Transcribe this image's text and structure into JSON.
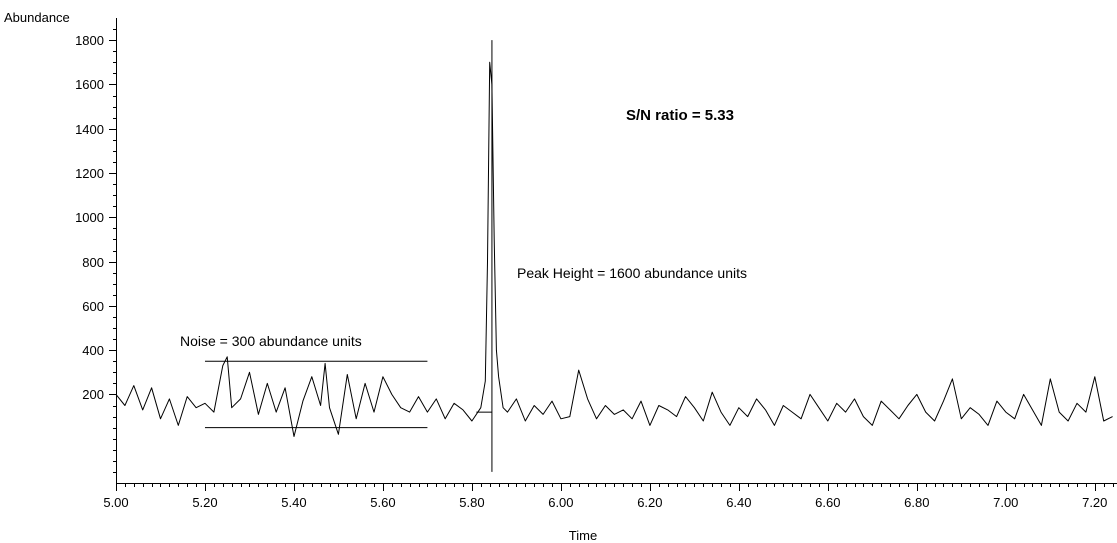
{
  "chart_data": {
    "type": "line",
    "xlabel": "Time",
    "ylabel": "Abundance",
    "xlim": [
      5.0,
      7.25
    ],
    "ylim": [
      -200,
      1900
    ],
    "x_ticks": [
      5.0,
      5.2,
      5.4,
      5.6,
      5.8,
      6.0,
      6.2,
      6.4,
      6.6,
      6.8,
      7.0,
      7.2
    ],
    "x_tick_labels": [
      "5.00",
      "5.20",
      "5.40",
      "5.60",
      "5.80",
      "6.00",
      "6.20",
      "6.40",
      "6.60",
      "6.80",
      "7.00",
      "7.20"
    ],
    "y_ticks": [
      200,
      400,
      600,
      800,
      1000,
      1200,
      1400,
      1600,
      1800
    ],
    "y_tick_labels": [
      "200",
      "400",
      "600",
      "800",
      "1000",
      "1200",
      "1400",
      "1600",
      "1800"
    ],
    "grid": false,
    "noise_band": {
      "x_start": 5.2,
      "x_end": 5.7,
      "upper": 350,
      "lower": 50
    },
    "peak_marker": {
      "x": 5.845,
      "top": 1800,
      "bottom": -150,
      "baseline": 120,
      "baseline_x_start": 5.81
    },
    "series": [
      {
        "x": [
          5.0,
          5.02,
          5.04,
          5.06,
          5.08,
          5.1,
          5.12,
          5.14,
          5.16,
          5.18,
          5.2,
          5.22,
          5.24,
          5.25,
          5.26,
          5.28,
          5.3,
          5.32,
          5.34,
          5.36,
          5.38,
          5.4,
          5.42,
          5.44,
          5.46,
          5.47,
          5.48,
          5.5,
          5.52,
          5.54,
          5.56,
          5.58,
          5.6,
          5.62,
          5.64,
          5.66,
          5.68,
          5.7,
          5.72,
          5.74,
          5.76,
          5.78,
          5.8,
          5.82,
          5.83,
          5.835,
          5.84,
          5.845,
          5.85,
          5.855,
          5.86,
          5.87,
          5.88,
          5.9,
          5.92,
          5.94,
          5.96,
          5.98,
          6.0,
          6.02,
          6.04,
          6.06,
          6.08,
          6.1,
          6.12,
          6.14,
          6.16,
          6.18,
          6.2,
          6.22,
          6.24,
          6.26,
          6.28,
          6.3,
          6.32,
          6.34,
          6.36,
          6.38,
          6.4,
          6.42,
          6.44,
          6.46,
          6.48,
          6.5,
          6.52,
          6.54,
          6.56,
          6.58,
          6.6,
          6.62,
          6.64,
          6.66,
          6.68,
          6.7,
          6.72,
          6.74,
          6.76,
          6.78,
          6.8,
          6.82,
          6.84,
          6.86,
          6.88,
          6.9,
          6.92,
          6.94,
          6.96,
          6.98,
          7.0,
          7.02,
          7.04,
          7.06,
          7.08,
          7.1,
          7.12,
          7.14,
          7.16,
          7.18,
          7.2,
          7.22,
          7.24
        ],
        "y": [
          200,
          150,
          240,
          130,
          230,
          90,
          180,
          60,
          190,
          140,
          160,
          120,
          330,
          370,
          140,
          180,
          300,
          110,
          250,
          120,
          230,
          10,
          170,
          280,
          150,
          340,
          140,
          20,
          290,
          90,
          250,
          120,
          280,
          200,
          140,
          120,
          190,
          120,
          180,
          90,
          160,
          130,
          80,
          140,
          260,
          800,
          1700,
          1600,
          900,
          400,
          280,
          140,
          120,
          180,
          80,
          150,
          110,
          170,
          90,
          100,
          310,
          180,
          90,
          150,
          110,
          130,
          90,
          170,
          60,
          150,
          130,
          100,
          190,
          140,
          80,
          210,
          120,
          60,
          140,
          100,
          180,
          130,
          60,
          150,
          120,
          90,
          200,
          140,
          80,
          160,
          120,
          180,
          100,
          60,
          170,
          130,
          90,
          150,
          200,
          120,
          80,
          170,
          270,
          90,
          140,
          110,
          60,
          170,
          120,
          90,
          200,
          130,
          60,
          270,
          120,
          80,
          160,
          120,
          280,
          80,
          100
        ]
      }
    ],
    "annotations": [
      "Noise  =  300 abundance units",
      "Peak Height  = 1600 abundance units",
      "S/N ratio = 5.33"
    ]
  }
}
